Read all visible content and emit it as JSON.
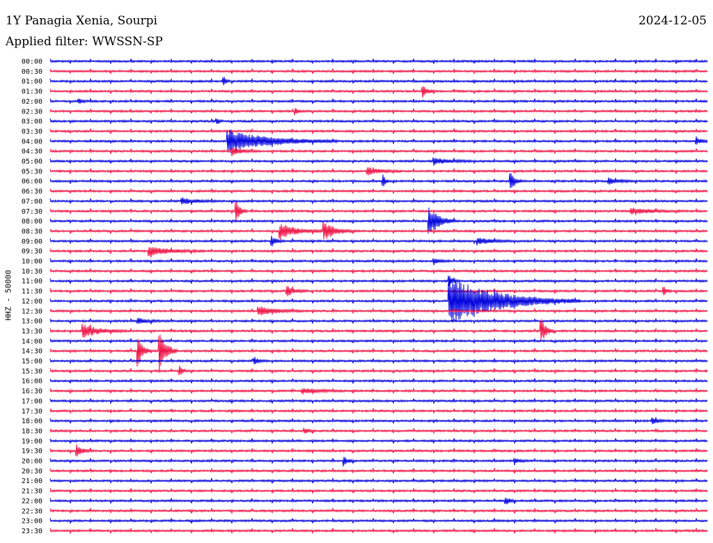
{
  "header": {
    "station": "1Y Panagia Xenia, Sourpi",
    "date": "2024-12-05",
    "filter": "Applied filter: WWSSN-SP",
    "channel": "HHZ - 50000"
  },
  "colors": {
    "line_a": "#0000dd",
    "line_b": "#ee1144",
    "background": "#ffffff",
    "text": "#000000"
  },
  "chart_data": {
    "type": "line",
    "title": "1Y Panagia Xenia, Sourpi",
    "ylabel": "HHZ - 50000",
    "grid": false,
    "legend": "none",
    "row_colors": [
      "blue",
      "red"
    ],
    "x_range_minutes": [
      0,
      30
    ],
    "rows": [
      "00:00",
      "00:30",
      "01:00",
      "01:30",
      "02:00",
      "02:30",
      "03:00",
      "03:30",
      "04:00",
      "04:30",
      "05:00",
      "05:30",
      "06:00",
      "06:30",
      "07:00",
      "07:30",
      "08:00",
      "08:30",
      "09:00",
      "09:30",
      "10:00",
      "10:30",
      "11:00",
      "11:30",
      "12:00",
      "12:30",
      "13:00",
      "13:30",
      "14:00",
      "14:30",
      "15:00",
      "15:30",
      "16:00",
      "16:30",
      "17:00",
      "17:30",
      "18:00",
      "18:30",
      "19:00",
      "19:30",
      "20:00",
      "20:30",
      "21:00",
      "21:30",
      "22:00",
      "22:30",
      "23:00",
      "23:30"
    ],
    "events": [
      {
        "row": "01:00",
        "minute": 7.9,
        "amplitude": 0.6,
        "duration_minutes": 0.3
      },
      {
        "row": "01:30",
        "minute": 17.0,
        "amplitude": 0.6,
        "duration_minutes": 0.6
      },
      {
        "row": "02:00",
        "minute": 1.3,
        "amplitude": 0.25,
        "duration_minutes": 0.6
      },
      {
        "row": "02:30",
        "minute": 11.2,
        "amplitude": 0.4,
        "duration_minutes": 0.3
      },
      {
        "row": "03:00",
        "minute": 7.6,
        "amplitude": 0.4,
        "duration_minutes": 0.3
      },
      {
        "row": "04:00",
        "minute": 8.1,
        "amplitude": 1.2,
        "duration_minutes": 5.0
      },
      {
        "row": "04:00",
        "minute": 29.5,
        "amplitude": 0.3,
        "duration_minutes": 0.8
      },
      {
        "row": "04:30",
        "minute": 8.3,
        "amplitude": 0.4,
        "duration_minutes": 1.2
      },
      {
        "row": "05:00",
        "minute": 17.5,
        "amplitude": 0.3,
        "duration_minutes": 2.0
      },
      {
        "row": "05:30",
        "minute": 14.5,
        "amplitude": 0.4,
        "duration_minutes": 1.5
      },
      {
        "row": "06:00",
        "minute": 15.2,
        "amplitude": 0.6,
        "duration_minutes": 0.3
      },
      {
        "row": "06:00",
        "minute": 21.0,
        "amplitude": 0.9,
        "duration_minutes": 0.6
      },
      {
        "row": "06:00",
        "minute": 25.5,
        "amplitude": 0.3,
        "duration_minutes": 1.2
      },
      {
        "row": "07:00",
        "minute": 6.0,
        "amplitude": 0.35,
        "duration_minutes": 1.5
      },
      {
        "row": "07:30",
        "minute": 8.5,
        "amplitude": 1.1,
        "duration_minutes": 0.5
      },
      {
        "row": "07:30",
        "minute": 26.5,
        "amplitude": 0.3,
        "duration_minutes": 2.5
      },
      {
        "row": "08:00",
        "minute": 17.3,
        "amplitude": 1.6,
        "duration_minutes": 1.2
      },
      {
        "row": "08:30",
        "minute": 10.5,
        "amplitude": 0.8,
        "duration_minutes": 2.0
      },
      {
        "row": "08:30",
        "minute": 12.5,
        "amplitude": 0.9,
        "duration_minutes": 1.5
      },
      {
        "row": "09:00",
        "minute": 10.1,
        "amplitude": 0.5,
        "duration_minutes": 0.6
      },
      {
        "row": "09:00",
        "minute": 19.5,
        "amplitude": 0.4,
        "duration_minutes": 1.5
      },
      {
        "row": "09:30",
        "minute": 4.5,
        "amplitude": 0.5,
        "duration_minutes": 2.5
      },
      {
        "row": "10:00",
        "minute": 17.5,
        "amplitude": 0.3,
        "duration_minutes": 0.8
      },
      {
        "row": "11:00",
        "minute": 18.2,
        "amplitude": 0.6,
        "duration_minutes": 0.5
      },
      {
        "row": "11:30",
        "minute": 10.8,
        "amplitude": 0.5,
        "duration_minutes": 1.0
      },
      {
        "row": "11:30",
        "minute": 28.0,
        "amplitude": 0.5,
        "duration_minutes": 0.4
      },
      {
        "row": "12:00",
        "minute": 18.2,
        "amplitude": 2.5,
        "duration_minutes": 6.0
      },
      {
        "row": "12:30",
        "minute": 9.5,
        "amplitude": 0.5,
        "duration_minutes": 2.0
      },
      {
        "row": "13:00",
        "minute": 4.0,
        "amplitude": 0.3,
        "duration_minutes": 1.2
      },
      {
        "row": "13:30",
        "minute": 1.5,
        "amplitude": 0.7,
        "duration_minutes": 2.0
      },
      {
        "row": "13:30",
        "minute": 22.4,
        "amplitude": 1.4,
        "duration_minutes": 0.6
      },
      {
        "row": "14:30",
        "minute": 4.0,
        "amplitude": 1.6,
        "duration_minutes": 0.6
      },
      {
        "row": "14:30",
        "minute": 5.0,
        "amplitude": 2.2,
        "duration_minutes": 0.8
      },
      {
        "row": "15:00",
        "minute": 9.3,
        "amplitude": 0.4,
        "duration_minutes": 0.6
      },
      {
        "row": "15:30",
        "minute": 5.9,
        "amplitude": 0.6,
        "duration_minutes": 0.4
      },
      {
        "row": "16:30",
        "minute": 11.5,
        "amplitude": 0.3,
        "duration_minutes": 2.0
      },
      {
        "row": "18:00",
        "minute": 27.5,
        "amplitude": 0.3,
        "duration_minutes": 0.8
      },
      {
        "row": "18:30",
        "minute": 11.6,
        "amplitude": 0.3,
        "duration_minutes": 0.6
      },
      {
        "row": "19:30",
        "minute": 1.2,
        "amplitude": 0.6,
        "duration_minutes": 0.8
      },
      {
        "row": "20:00",
        "minute": 13.4,
        "amplitude": 0.5,
        "duration_minutes": 0.5
      },
      {
        "row": "20:00",
        "minute": 21.2,
        "amplitude": 0.3,
        "duration_minutes": 0.6
      },
      {
        "row": "22:00",
        "minute": 20.8,
        "amplitude": 0.4,
        "duration_minutes": 0.5
      }
    ]
  }
}
